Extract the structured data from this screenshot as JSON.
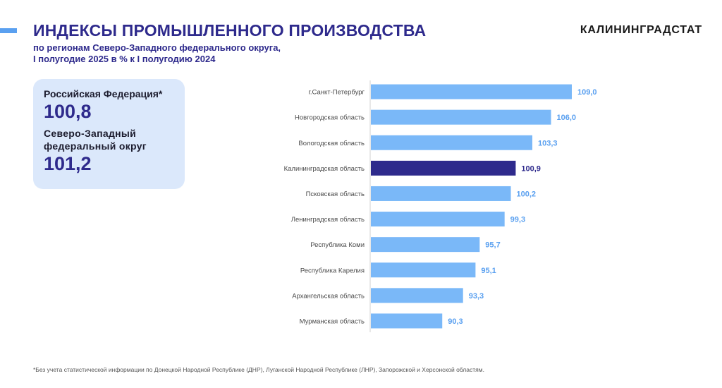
{
  "header": {
    "title": "ИНДЕКСЫ ПРОМЫШЛЕННОГО ПРОИЗВОДСТВА",
    "subtitle_line1": "по регионам Северо-Западного федерального округа,",
    "subtitle_line2": "I полугодие 2025  в % к I полугодию 2024",
    "brand": "КАЛИНИНГРАДСТАТ"
  },
  "summary": {
    "rf_label": "Российская Федерация*",
    "rf_value": "100,8",
    "nw_label_line1": "Северо-Западный",
    "nw_label_line2": "федеральный  округ",
    "nw_value": "101,2"
  },
  "footnote": "*Без учета статистической информации по Донецкой Народной Республике (ДНР), Луганской Народной Республике (ЛНР), Запорожской и Херсонской областям.",
  "colors": {
    "bar": "#7ab8f8",
    "highlight_bar": "#2e2a8c",
    "value_label": "#5aa0f0",
    "highlight_label": "#2e2a8c",
    "axis": "#d0d0d0",
    "category_label": "#4a4a4a"
  },
  "chart_data": {
    "type": "bar",
    "orientation": "horizontal",
    "categories": [
      "г.Санкт-Петербург",
      "Новгородская область",
      "Вологодская область",
      "Калининградская область",
      "Псковская область",
      "Ленинградская область",
      "Республика Коми",
      "Республика Карелия",
      "Архангельская область",
      "Мурманская область"
    ],
    "values": [
      109.0,
      106.0,
      103.3,
      100.9,
      100.2,
      99.3,
      95.7,
      95.1,
      93.3,
      90.3
    ],
    "value_labels": [
      "109,0",
      "106,0",
      "103,3",
      "100,9",
      "100,2",
      "99,3",
      "95,7",
      "95,1",
      "93,3",
      "90,3"
    ],
    "highlight_index": 3,
    "xlim": [
      80,
      109
    ],
    "grid": false,
    "legend": "none"
  }
}
